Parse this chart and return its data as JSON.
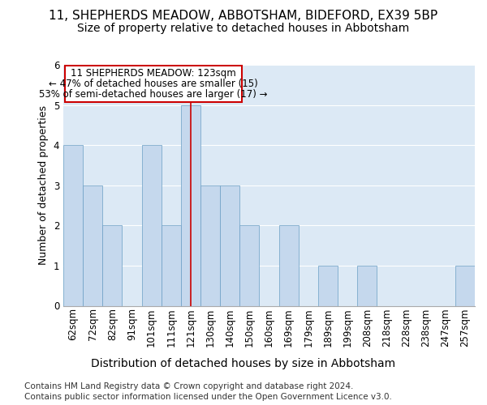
{
  "title1": "11, SHEPHERDS MEADOW, ABBOTSHAM, BIDEFORD, EX39 5BP",
  "title2": "Size of property relative to detached houses in Abbotsham",
  "xlabel": "Distribution of detached houses by size in Abbotsham",
  "ylabel": "Number of detached properties",
  "categories": [
    "62sqm",
    "72sqm",
    "82sqm",
    "91sqm",
    "101sqm",
    "111sqm",
    "121sqm",
    "130sqm",
    "140sqm",
    "150sqm",
    "160sqm",
    "169sqm",
    "179sqm",
    "189sqm",
    "199sqm",
    "208sqm",
    "218sqm",
    "228sqm",
    "238sqm",
    "247sqm",
    "257sqm"
  ],
  "values": [
    4,
    3,
    2,
    0,
    4,
    2,
    5,
    3,
    3,
    2,
    0,
    2,
    0,
    1,
    0,
    1,
    0,
    0,
    0,
    0,
    1
  ],
  "highlight_index": 6,
  "bar_color": "#c5d8ed",
  "bar_edge_color": "#6a9ec4",
  "highlight_line_color": "#cc0000",
  "ylim": [
    0,
    6
  ],
  "yticks": [
    0,
    1,
    2,
    3,
    4,
    5,
    6
  ],
  "annotation_box_color": "#ffffff",
  "annotation_border_color": "#cc0000",
  "annotation_text_line1": "11 SHEPHERDS MEADOW: 123sqm",
  "annotation_text_line2": "← 47% of detached houses are smaller (15)",
  "annotation_text_line3": "53% of semi-detached houses are larger (17) →",
  "footer1": "Contains HM Land Registry data © Crown copyright and database right 2024.",
  "footer2": "Contains public sector information licensed under the Open Government Licence v3.0.",
  "bg_color": "#dce9f5",
  "grid_color": "#ffffff",
  "title_fontsize": 11,
  "subtitle_fontsize": 10,
  "xlabel_fontsize": 10,
  "ylabel_fontsize": 9,
  "tick_fontsize": 8.5,
  "annotation_fontsize": 8.5,
  "footer_fontsize": 7.5
}
